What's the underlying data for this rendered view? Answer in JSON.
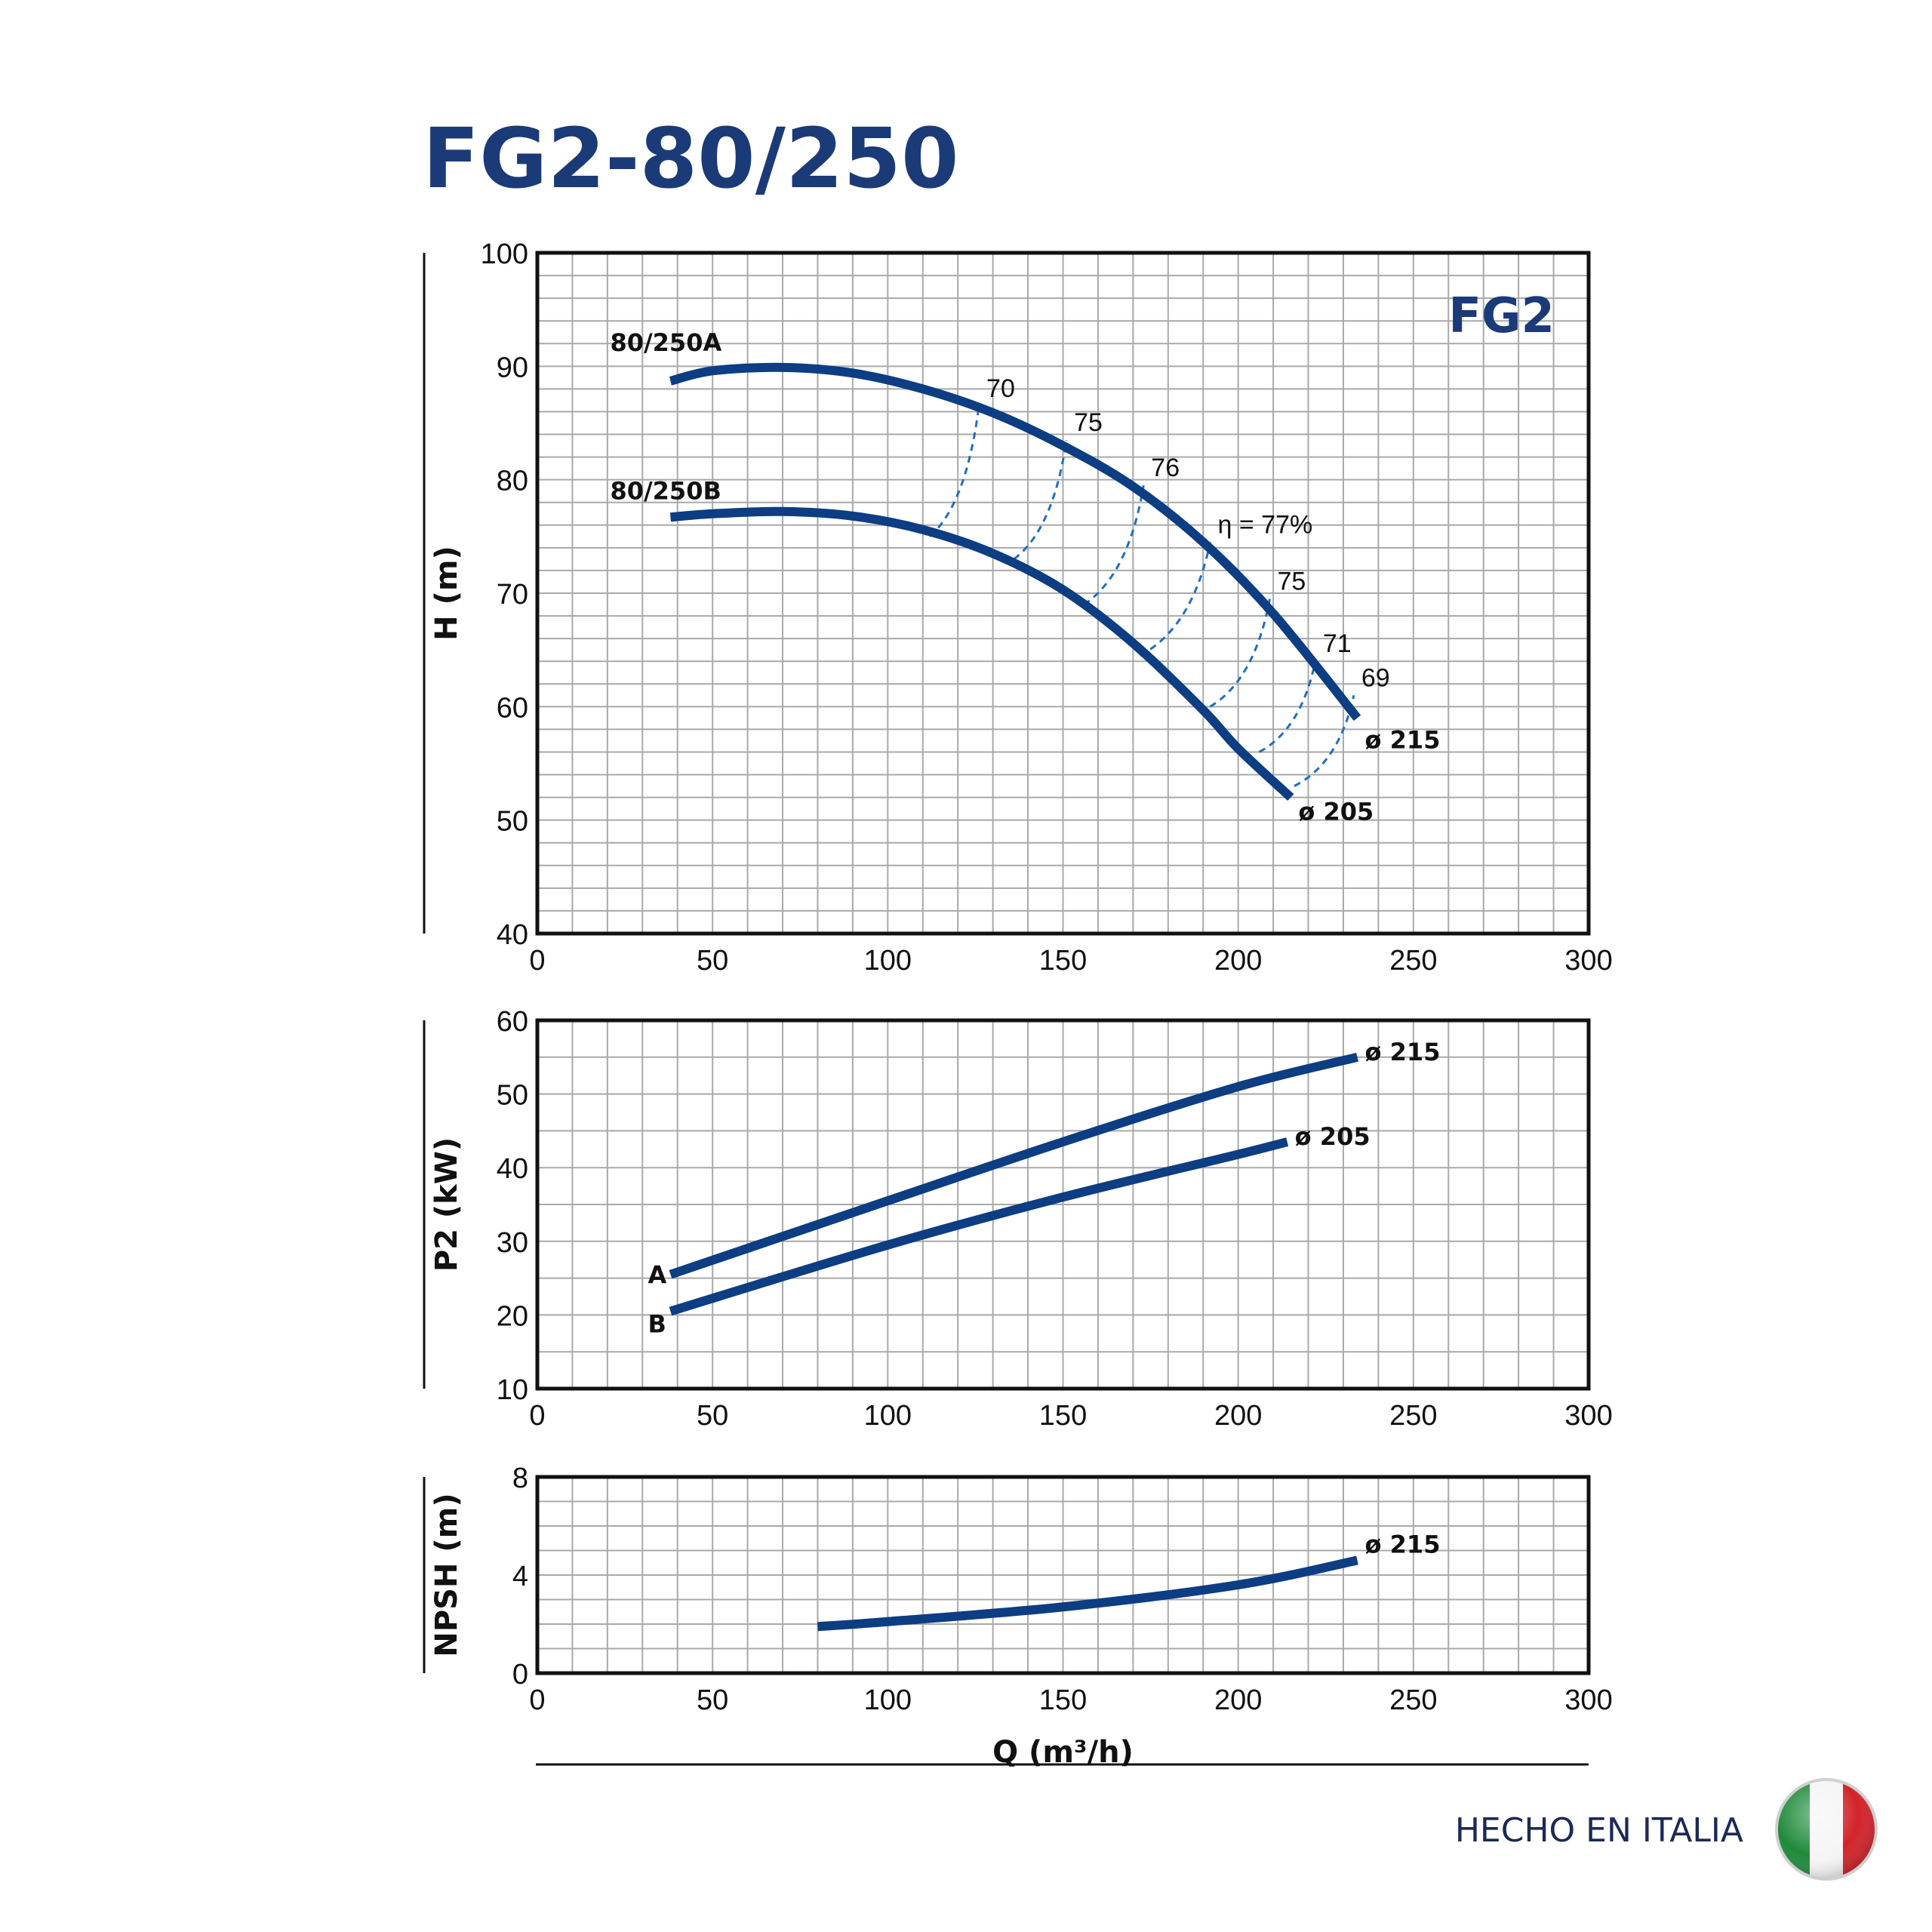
{
  "title": "FG2-80/250",
  "brand_tag": "FG2",
  "footer_text": "HECHO EN ITALIA",
  "colors": {
    "curve": "#0d3d82",
    "title": "#1b3a78",
    "grid": "#a9a9a9",
    "efficiency": "#1f6fc0"
  },
  "flag_icon": "italy-flag-icon",
  "chart_data": [
    {
      "type": "line",
      "name": "head",
      "ylabel": "H (m)",
      "xlim": [
        0,
        300
      ],
      "ylim": [
        40,
        100
      ],
      "xticks": [
        0,
        50,
        100,
        150,
        200,
        250,
        300
      ],
      "yticks": [
        40,
        50,
        60,
        70,
        80,
        90,
        100
      ],
      "grid": true,
      "series": [
        {
          "name": "80/250A",
          "end_label": "ø 215",
          "x": [
            38,
            50,
            70,
            90,
            110,
            130,
            150,
            170,
            190,
            210,
            234
          ],
          "y": [
            88.7,
            89.6,
            89.9,
            89.4,
            88.0,
            85.9,
            83.0,
            79.4,
            74.5,
            68.2,
            59.0
          ]
        },
        {
          "name": "80/250B",
          "end_label": "ø 205",
          "x": [
            38,
            50,
            70,
            90,
            110,
            130,
            150,
            170,
            190,
            200,
            215
          ],
          "y": [
            76.7,
            77.0,
            77.2,
            76.8,
            75.6,
            73.5,
            70.3,
            65.6,
            59.7,
            56.3,
            52.0
          ]
        }
      ],
      "efficiency_lines": [
        {
          "label": "70",
          "x": [
            112,
            126
          ],
          "y": [
            75.0,
            86.5
          ]
        },
        {
          "label": "75",
          "x": [
            136,
            151
          ],
          "y": [
            73.0,
            83.5
          ]
        },
        {
          "label": "76",
          "x": [
            156,
            173
          ],
          "y": [
            69.0,
            79.5
          ]
        },
        {
          "label": "η = 77%",
          "x": [
            172,
            192
          ],
          "y": [
            64.5,
            74.5
          ]
        },
        {
          "label": "75",
          "x": [
            192,
            209
          ],
          "y": [
            60.0,
            69.5
          ]
        },
        {
          "label": "71",
          "x": [
            206,
            222
          ],
          "y": [
            56.0,
            64.0
          ]
        },
        {
          "label": "69",
          "x": [
            216,
            233
          ],
          "y": [
            53.0,
            61.0
          ]
        }
      ]
    },
    {
      "type": "line",
      "name": "power",
      "ylabel": "P2 (kW)",
      "xlim": [
        0,
        300
      ],
      "ylim": [
        10,
        60
      ],
      "xticks": [
        0,
        50,
        100,
        150,
        200,
        250,
        300
      ],
      "yticks": [
        10,
        20,
        30,
        40,
        50,
        60
      ],
      "grid": true,
      "series": [
        {
          "name": "A",
          "end_label": "ø 215",
          "x": [
            38,
            100,
            150,
            200,
            234
          ],
          "y": [
            25.5,
            35.5,
            43.5,
            51.0,
            55.0
          ]
        },
        {
          "name": "B",
          "end_label": "ø 205",
          "x": [
            38,
            100,
            150,
            200,
            214
          ],
          "y": [
            20.5,
            29.5,
            36.0,
            41.8,
            43.5
          ]
        }
      ]
    },
    {
      "type": "line",
      "name": "npsh",
      "ylabel": "NPSH (m)",
      "xlabel": "Q (m³/h)",
      "xlim": [
        0,
        300
      ],
      "ylim": [
        0,
        8
      ],
      "xticks": [
        0,
        50,
        100,
        150,
        200,
        250,
        300
      ],
      "yticks": [
        0,
        4,
        8
      ],
      "grid": true,
      "series": [
        {
          "name": "ø 215",
          "end_label": "ø 215",
          "x": [
            80,
            100,
            150,
            200,
            234
          ],
          "y": [
            1.9,
            2.1,
            2.7,
            3.6,
            4.6
          ]
        }
      ]
    }
  ]
}
